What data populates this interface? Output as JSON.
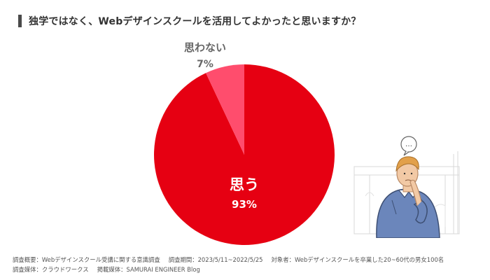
{
  "title": "独学ではなく、Webデザインスクールを活用してよかったと思いますか？",
  "chart_data": {
    "type": "pie",
    "slices": [
      {
        "label": "思う",
        "value": 93,
        "value_text": "93%",
        "color": "#e60012"
      },
      {
        "label": "思わない",
        "value": 7,
        "value_text": "7%",
        "color": "#ff4d6d"
      }
    ]
  },
  "footer": {
    "line1": {
      "survey_overview": "調査概要：Webデザインスクール受講に関する意識調査",
      "survey_period": "調査期間：2023/5/11~2022/5/25",
      "target": "対象者：Webデザインスクールを卒業した20~60代の男女100名"
    },
    "line2": {
      "medium": "調査媒体：クラウドワークス",
      "publication": "掲載媒体：SAMURAI ENGINEER Blog"
    }
  },
  "illustration": {
    "icon": "thinking-man-illustration",
    "speech_bubble": "…"
  }
}
